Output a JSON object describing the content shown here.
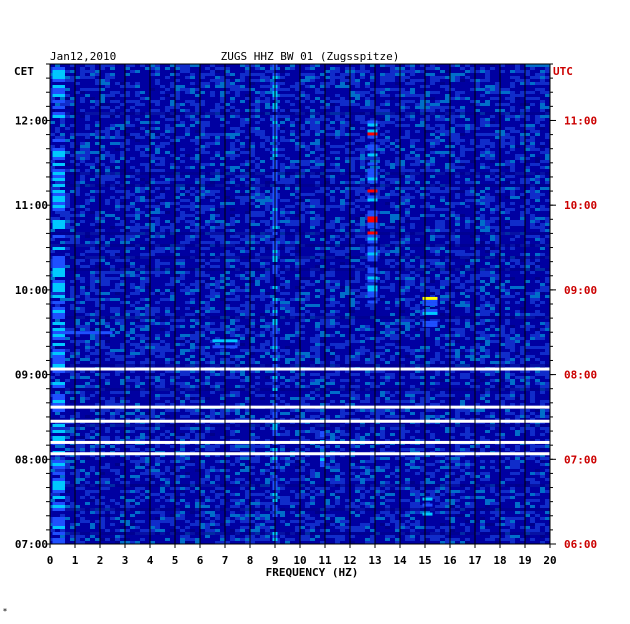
{
  "chart_data": {
    "type": "heatmap",
    "date": "Jan12,2010",
    "title": "ZUGS HHZ BW 01 (Zugsspitze)",
    "xlabel": "FREQUENCY (HZ)",
    "xlim": [
      0,
      20
    ],
    "x_ticks": [
      "0",
      "1",
      "2",
      "3",
      "4",
      "5",
      "6",
      "7",
      "8",
      "9",
      "10",
      "11",
      "12",
      "13",
      "14",
      "15",
      "16",
      "17",
      "18",
      "19",
      "20"
    ],
    "left_axis": {
      "label": "CET",
      "ylim": [
        "07:00",
        "12:40"
      ],
      "ticks": [
        "12:00",
        "11:00",
        "10:00",
        "09:00",
        "08:00",
        "07:00"
      ]
    },
    "right_axis": {
      "label": "UTC",
      "ticks": [
        "11:00",
        "10:00",
        "09:00",
        "08:00",
        "07:00",
        "06:00"
      ]
    },
    "grid": true,
    "colors": {
      "background": "#00008b",
      "low": "#0000b4",
      "medium": "#1e50ff",
      "high": "#00c8ff",
      "peak": "#ffff00",
      "max": "#ff0000",
      "utc_text": "#cc0000",
      "gap": "#ffffff"
    },
    "data_gaps_cet": [
      [
        "09:05",
        "09:08"
      ],
      [
        "08:38",
        "08:42"
      ],
      [
        "08:28",
        "08:30"
      ],
      [
        "08:13",
        "08:16"
      ],
      [
        "08:05",
        "08:07"
      ]
    ],
    "hotspots": [
      {
        "freq_hz": [
          0.1,
          0.6
        ],
        "time_cet": [
          "07:00",
          "12:40"
        ],
        "level": "high"
      },
      {
        "freq_hz": [
          12.7,
          13.1
        ],
        "time_cet": [
          "09:52",
          "12:00"
        ],
        "level": "max"
      },
      {
        "freq_hz": [
          14.9,
          15.5
        ],
        "time_cet": [
          "09:35",
          "09:55"
        ],
        "level": "peak"
      },
      {
        "freq_hz": [
          10.8,
          11.0
        ],
        "time_cet": [
          "07:55",
          "08:20"
        ],
        "level": "peak"
      },
      {
        "freq_hz": [
          14.9,
          15.3
        ],
        "time_cet": [
          "07:20",
          "07:35"
        ],
        "level": "peak"
      },
      {
        "freq_hz": [
          6.5,
          7.5
        ],
        "time_cet": [
          "09:20",
          "09:25"
        ],
        "level": "peak"
      },
      {
        "freq_hz": [
          0.5,
          2.5
        ],
        "time_cet": [
          "09:30",
          "09:35"
        ],
        "level": "high"
      },
      {
        "freq_hz": [
          8.9,
          9.1
        ],
        "time_cet": [
          "07:00",
          "12:40"
        ],
        "level": "medium"
      }
    ]
  },
  "footer": {
    "mark": "*"
  }
}
